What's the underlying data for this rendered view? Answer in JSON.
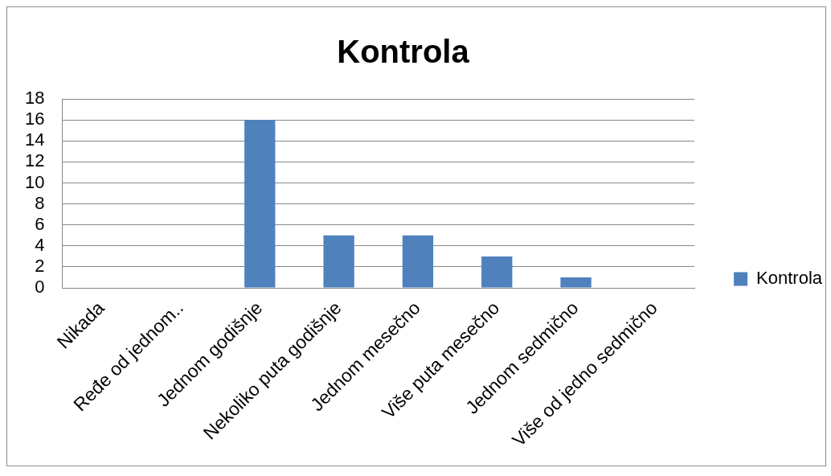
{
  "chart_data": {
    "type": "bar",
    "title": "Kontrola",
    "categories": [
      "Nikada",
      "Ređe od jednom..",
      "Jednom godišnje",
      "Nekoliko puta godišnje",
      "Jednom mesečno",
      "Više puta mesečno",
      "Jednom sedmično",
      "Više od jedno sedmično"
    ],
    "series": [
      {
        "name": "Kontrola",
        "color": "#4f81bd",
        "values": [
          0,
          0,
          16,
          5,
          5,
          3,
          1,
          0
        ]
      }
    ],
    "ylim": [
      0,
      18
    ],
    "yticks": [
      0,
      2,
      4,
      6,
      8,
      10,
      12,
      14,
      16,
      18
    ],
    "grid": "y",
    "legend": "right"
  }
}
